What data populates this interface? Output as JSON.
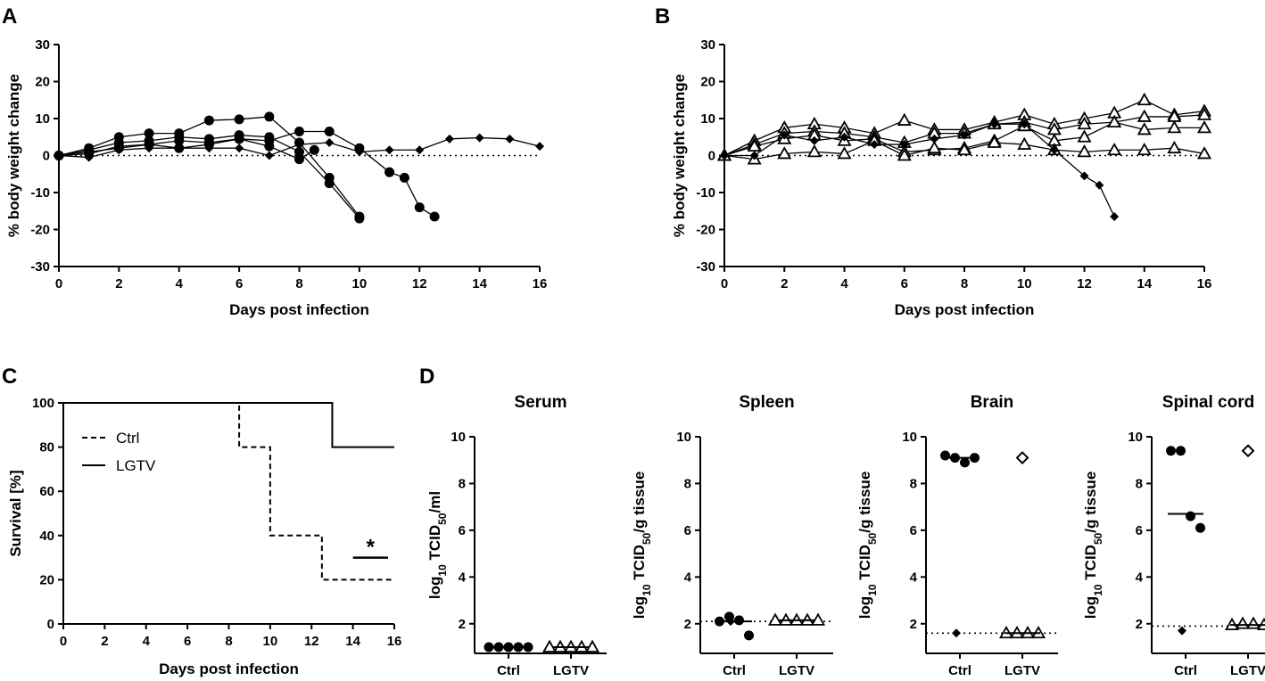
{
  "chart_data": [
    {
      "panel": "A",
      "type": "line",
      "xlabel": "Days post infection",
      "ylabel": "% body weight change",
      "xlim": [
        0,
        16
      ],
      "ylim": [
        -30,
        30
      ],
      "xticks": [
        "0",
        "2",
        "4",
        "6",
        "8",
        "10",
        "12",
        "14",
        "16"
      ],
      "yticks": [
        "-30",
        "-20",
        "-10",
        "0",
        "10",
        "20",
        "30"
      ],
      "reference_line": {
        "y": 0,
        "style": "dotted"
      },
      "series": [
        {
          "marker": "circle",
          "x": [
            0,
            1,
            2,
            3,
            4,
            5,
            6,
            7,
            8,
            9,
            10
          ],
          "y": [
            0,
            2,
            5,
            6,
            6,
            9.5,
            9.8,
            10.5,
            3.5,
            -6,
            -16.5
          ]
        },
        {
          "marker": "circle",
          "x": [
            0,
            1,
            2,
            3,
            4,
            5,
            6,
            7,
            8,
            9,
            10
          ],
          "y": [
            0,
            1.5,
            3.5,
            4,
            5,
            4.5,
            5.5,
            5,
            1,
            -7.5,
            -17
          ]
        },
        {
          "marker": "circle",
          "x": [
            0,
            1,
            2,
            3,
            4,
            5,
            6,
            7,
            8,
            9,
            10,
            11,
            11.5,
            12,
            12.5
          ],
          "y": [
            0,
            1,
            2,
            3,
            2,
            3,
            4.5,
            4,
            6.5,
            6.5,
            2,
            -4.5,
            -6,
            -14,
            -16.5
          ]
        },
        {
          "marker": "circle",
          "x": [
            0,
            1,
            2,
            3,
            4,
            5,
            6,
            7,
            8,
            8.5
          ],
          "y": [
            0,
            0.5,
            2.5,
            3,
            4,
            3.5,
            4.5,
            2.5,
            -1,
            1.5
          ]
        },
        {
          "marker": "diamond",
          "x": [
            0,
            1,
            2,
            3,
            4,
            5,
            6,
            7,
            8,
            9,
            10,
            11,
            12,
            13,
            14,
            15,
            16
          ],
          "y": [
            0,
            -0.5,
            1.5,
            2,
            2,
            2,
            2,
            0,
            3,
            3.5,
            1,
            1.5,
            1.5,
            4.5,
            4.8,
            4.5,
            2.5
          ]
        }
      ]
    },
    {
      "panel": "B",
      "type": "line",
      "xlabel": "Days post infection",
      "ylabel": "% body weight change",
      "xlim": [
        0,
        16
      ],
      "ylim": [
        -30,
        30
      ],
      "xticks": [
        "0",
        "2",
        "4",
        "6",
        "8",
        "10",
        "12",
        "14",
        "16"
      ],
      "yticks": [
        "-30",
        "-20",
        "-10",
        "0",
        "10",
        "20",
        "30"
      ],
      "reference_line": {
        "y": 0,
        "style": "dotted"
      },
      "series": [
        {
          "marker": "triangle",
          "x": [
            0,
            1,
            2,
            3,
            4,
            5,
            6,
            7,
            8,
            9,
            10,
            11,
            12,
            13,
            14,
            15,
            16
          ],
          "y": [
            0,
            4,
            7.5,
            8.5,
            7.5,
            6,
            9.5,
            7,
            7,
            9,
            11,
            8.5,
            10,
            11.5,
            15,
            11,
            12
          ]
        },
        {
          "marker": "triangle",
          "x": [
            0,
            1,
            2,
            3,
            4,
            5,
            6,
            7,
            8,
            9,
            10,
            11,
            12,
            13,
            14,
            15,
            16
          ],
          "y": [
            0,
            3,
            6,
            6.5,
            6,
            5,
            3.5,
            6,
            6,
            8.5,
            9,
            7,
            8.5,
            9,
            10.5,
            10.5,
            11
          ]
        },
        {
          "marker": "triangle",
          "x": [
            0,
            1,
            2,
            3,
            4,
            5,
            6,
            7,
            8,
            9,
            10,
            11,
            12,
            13,
            14,
            15,
            16
          ],
          "y": [
            0,
            2.5,
            4.5,
            5.5,
            4,
            4.5,
            1,
            1.5,
            2,
            4,
            8,
            4,
            5,
            9,
            7,
            7.5,
            7.5
          ]
        },
        {
          "marker": "triangle",
          "x": [
            0,
            1,
            2,
            3,
            4,
            5,
            6,
            7,
            8,
            9,
            10,
            11,
            12,
            13,
            14,
            15,
            16
          ],
          "y": [
            0,
            -1,
            0.5,
            1,
            0.5,
            4,
            0,
            2,
            1.5,
            3.5,
            3,
            1.5,
            1,
            1.5,
            1.5,
            2,
            0.5
          ]
        },
        {
          "marker": "diamond",
          "x": [
            0,
            1,
            2,
            3,
            4,
            5,
            6,
            7,
            8,
            9,
            10,
            11,
            12,
            12.5,
            13
          ],
          "y": [
            0,
            0,
            5.5,
            4,
            5,
            3,
            3,
            4.5,
            5.5,
            8.5,
            8.5,
            1.5,
            -5.5,
            -8,
            -16.5
          ]
        }
      ]
    },
    {
      "panel": "C",
      "type": "line",
      "subtype": "survival-step",
      "xlabel": "Days post infection",
      "ylabel": "Survival [%]",
      "xlim": [
        0,
        16
      ],
      "ylim": [
        0,
        100
      ],
      "xticks": [
        "0",
        "2",
        "4",
        "6",
        "8",
        "10",
        "12",
        "14",
        "16"
      ],
      "yticks": [
        "0",
        "20",
        "40",
        "60",
        "80",
        "100"
      ],
      "legend": {
        "position": "top-left",
        "entries": [
          "Ctrl",
          "LGTV"
        ]
      },
      "series": [
        {
          "name": "Ctrl",
          "style": "dashed",
          "x": [
            0,
            8.5,
            8.5,
            10,
            10,
            12.5,
            12.5,
            16
          ],
          "y": [
            100,
            100,
            80,
            80,
            40,
            40,
            20,
            20
          ]
        },
        {
          "name": "LGTV",
          "style": "solid",
          "x": [
            0,
            13,
            13,
            16
          ],
          "y": [
            100,
            100,
            80,
            80
          ]
        }
      ],
      "annotation": {
        "text": "*",
        "bar_x": [
          14,
          15.7
        ],
        "bar_y": 30
      }
    },
    {
      "panel": "D",
      "type": "scatter",
      "subplots": [
        {
          "title": "Serum",
          "ylabel": "log10 TCID50/ml",
          "ylim": [
            1,
            10
          ],
          "yticks": [
            "2",
            "4",
            "6",
            "8",
            "10"
          ],
          "categories": [
            "Ctrl",
            "LGTV"
          ],
          "lod": null,
          "groups": [
            {
              "category": "Ctrl",
              "marker": "circle",
              "values": [
                1,
                1,
                1,
                1,
                1
              ],
              "median": 1
            },
            {
              "category": "LGTV",
              "marker": "triangle",
              "values": [
                1,
                1,
                1,
                1,
                1
              ],
              "median": 1
            }
          ]
        },
        {
          "title": "Spleen",
          "ylabel": "log10 TCID50/g tissue",
          "ylim": [
            1,
            10
          ],
          "yticks": [
            "2",
            "4",
            "6",
            "8",
            "10"
          ],
          "categories": [
            "Ctrl",
            "LGTV"
          ],
          "lod": 2.1,
          "groups": [
            {
              "category": "Ctrl",
              "marker": "circle",
              "values": [
                2.1,
                2.3,
                2.15,
                1.5
              ],
              "median": 2.1,
              "extra_diamond": [
                2.1
              ]
            },
            {
              "category": "LGTV",
              "marker": "triangle",
              "values": [
                2.15,
                2.15,
                2.15,
                2.15,
                2.15
              ],
              "median": 2.15
            }
          ]
        },
        {
          "title": "Brain",
          "ylabel": "log10 TCID50/g tissue",
          "ylim": [
            1,
            10
          ],
          "yticks": [
            "2",
            "4",
            "6",
            "8",
            "10"
          ],
          "categories": [
            "Ctrl",
            "LGTV"
          ],
          "lod": 1.6,
          "groups": [
            {
              "category": "Ctrl",
              "marker": "circle",
              "values": [
                9.2,
                9.1,
                8.9,
                9.1
              ],
              "median": 9.1,
              "extra_diamond": [
                1.6
              ]
            },
            {
              "category": "LGTV",
              "marker": "triangle",
              "values": [
                1.6,
                1.6,
                1.6,
                1.6
              ],
              "median": 1.6,
              "extra_open_diamond": [
                9.1
              ]
            }
          ]
        },
        {
          "title": "Spinal cord",
          "ylabel": "log10 TCID50/g tissue",
          "ylim": [
            1,
            10
          ],
          "yticks": [
            "2",
            "4",
            "6",
            "8",
            "10"
          ],
          "categories": [
            "Ctrl",
            "LGTV"
          ],
          "lod": 1.9,
          "groups": [
            {
              "category": "Ctrl",
              "marker": "circle",
              "values": [
                9.4,
                9.4,
                6.6,
                6.1
              ],
              "median": 6.7,
              "extra_diamond": [
                1.7
              ]
            },
            {
              "category": "LGTV",
              "marker": "triangle",
              "values": [
                1.95,
                2,
                2,
                1.95
              ],
              "median": 1.95,
              "extra_open_diamond": [
                9.4
              ]
            }
          ]
        }
      ]
    }
  ],
  "panel_labels": {
    "A": "A",
    "B": "B",
    "C": "C",
    "D": "D"
  }
}
